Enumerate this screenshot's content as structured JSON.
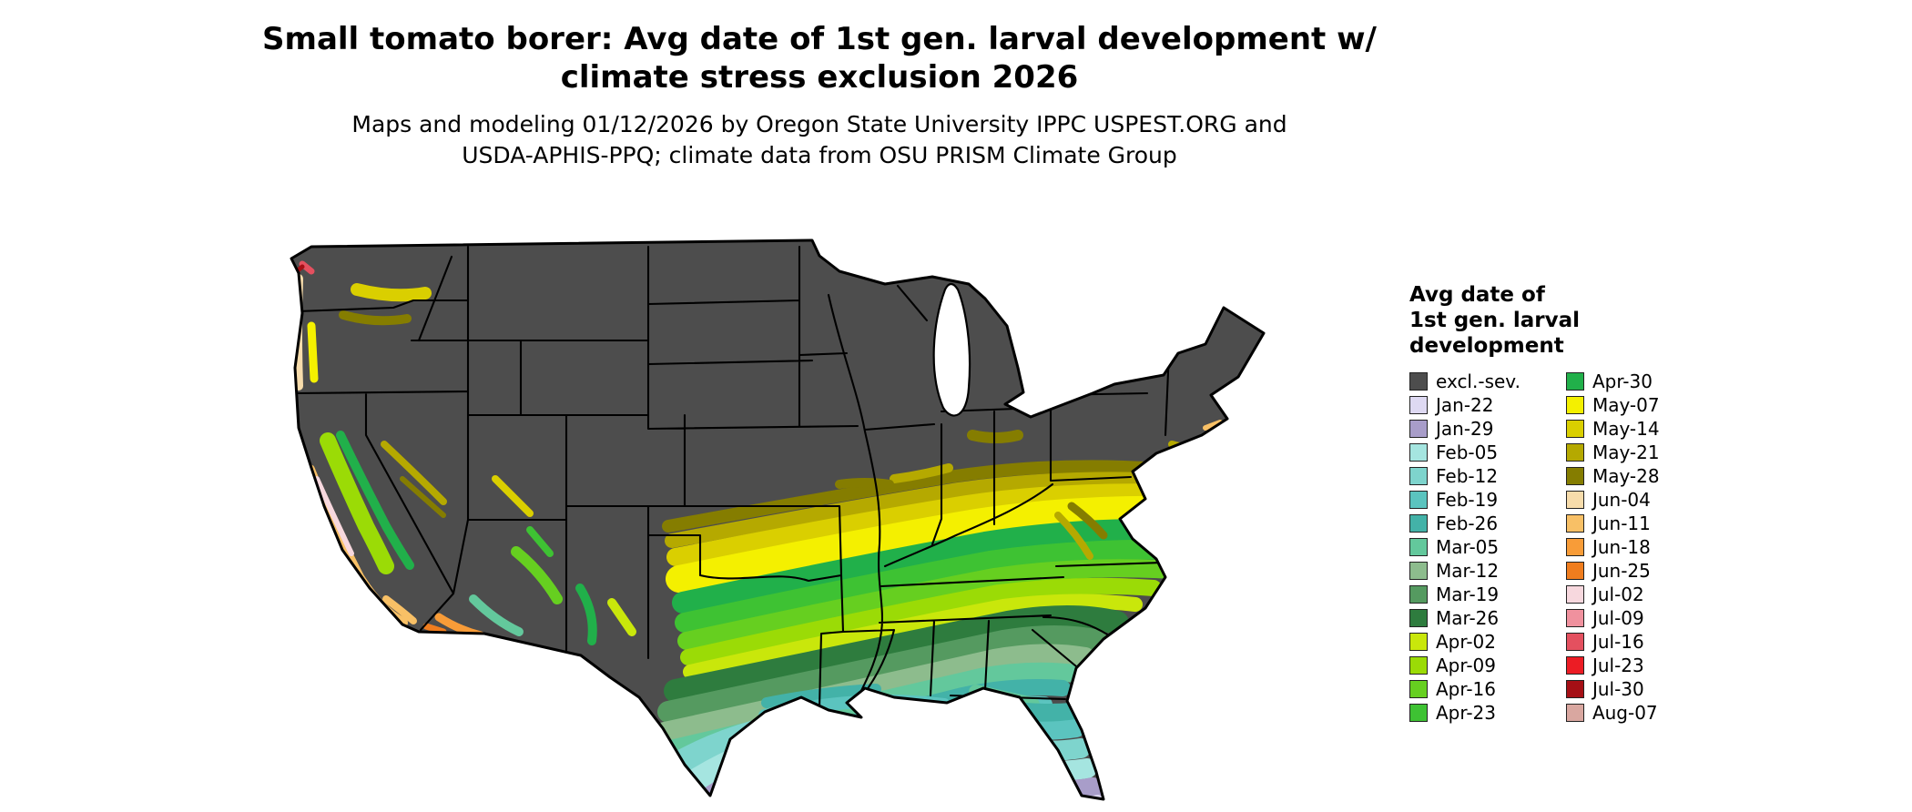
{
  "header": {
    "title_line1": "Small tomato borer: Avg date of 1st gen. larval development w/",
    "title_line2": "climate stress exclusion 2026",
    "subtitle_line1": "Maps and modeling 01/12/2026 by Oregon State University IPPC USPEST.ORG and",
    "subtitle_line2": "USDA-APHIS-PPQ; climate data from OSU PRISM Climate Group"
  },
  "legend": {
    "title_lines": [
      "Avg date of",
      "1st gen. larval",
      "development"
    ],
    "columns": [
      {
        "entries": [
          {
            "label": "excl.-sev.",
            "color": "#4d4d4d"
          },
          {
            "label": "Jan-22",
            "color": "#ded9f2"
          },
          {
            "label": "Jan-29",
            "color": "#a89dc9"
          },
          {
            "label": "Feb-05",
            "color": "#a5e5e0"
          },
          {
            "label": "Feb-12",
            "color": "#7ed4cd"
          },
          {
            "label": "Feb-19",
            "color": "#5bc4bf"
          },
          {
            "label": "Feb-26",
            "color": "#43b2a8"
          },
          {
            "label": "Mar-05",
            "color": "#63c89c"
          },
          {
            "label": "Mar-12",
            "color": "#8dbc8d"
          },
          {
            "label": "Mar-19",
            "color": "#559a60"
          },
          {
            "label": "Mar-26",
            "color": "#2e7c3e"
          },
          {
            "label": "Apr-02",
            "color": "#c9e70b"
          },
          {
            "label": "Apr-09",
            "color": "#9bdb06"
          },
          {
            "label": "Apr-16",
            "color": "#66cf20"
          },
          {
            "label": "Apr-23",
            "color": "#3ec233"
          }
        ]
      },
      {
        "entries": [
          {
            "label": "Apr-30",
            "color": "#21b04a"
          },
          {
            "label": "May-07",
            "color": "#f4f000"
          },
          {
            "label": "May-14",
            "color": "#dacf00"
          },
          {
            "label": "May-21",
            "color": "#b5a900"
          },
          {
            "label": "May-28",
            "color": "#857d00"
          },
          {
            "label": "Jun-04",
            "color": "#f7dcab"
          },
          {
            "label": "Jun-11",
            "color": "#f8c066"
          },
          {
            "label": "Jun-18",
            "color": "#f89c38"
          },
          {
            "label": "Jun-25",
            "color": "#f07d1e"
          },
          {
            "label": "Jul-02",
            "color": "#f7d8de"
          },
          {
            "label": "Jul-09",
            "color": "#f0919e"
          },
          {
            "label": "Jul-16",
            "color": "#e4505f"
          },
          {
            "label": "Jul-23",
            "color": "#ec1c24"
          },
          {
            "label": "Jul-30",
            "color": "#a50f15"
          },
          {
            "label": "Aug-07",
            "color": "#d9a7a0"
          }
        ]
      }
    ]
  },
  "map": {
    "region": "Continental United States",
    "excluded_label": "excl.-sev.",
    "border_color": "#000000",
    "water_color": "#ffffff"
  }
}
